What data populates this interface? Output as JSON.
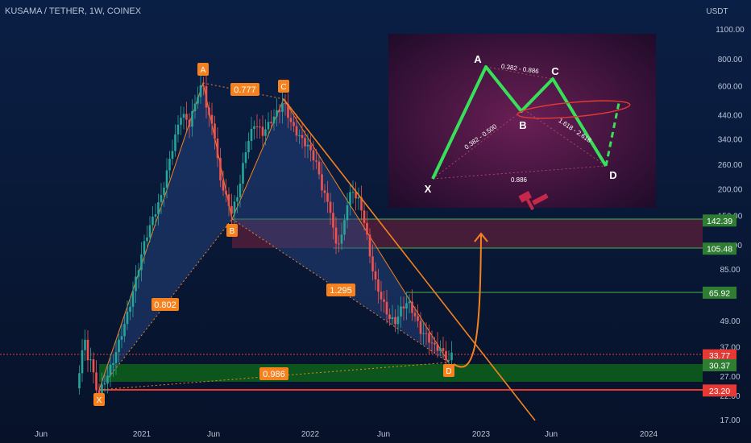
{
  "header": {
    "title": "KUSAMA / TETHER, 1W, COINEX"
  },
  "axis": {
    "currency": "USDT",
    "y_ticks": [
      "1100.00",
      "800.00",
      "600.00",
      "440.00",
      "340.00",
      "260.00",
      "200.00",
      "150.00",
      "110.00",
      "85.00",
      "49.00",
      "37.00",
      "27.00",
      "22.00",
      "17.00"
    ],
    "x_ticks": [
      "Jun",
      "2021",
      "Jun",
      "2022",
      "Jun",
      "2023",
      "Jun",
      "2024"
    ]
  },
  "price_tags": [
    {
      "value": "142.39",
      "color": "#2e7d32"
    },
    {
      "value": "105.48",
      "color": "#2e7d32"
    },
    {
      "value": "65.92",
      "color": "#2e7d32"
    },
    {
      "value": "33.77",
      "color": "#e53935"
    },
    {
      "value": "30.37",
      "color": "#2e7d32"
    },
    {
      "value": "23.20",
      "color": "#e53935"
    }
  ],
  "pattern_points": [
    "X",
    "A",
    "B",
    "C",
    "D"
  ],
  "ratio_labels": [
    "0.777",
    "0.802",
    "1.295",
    "0.986"
  ],
  "inset": {
    "points": [
      "X",
      "A",
      "B",
      "C",
      "D"
    ],
    "ratios": [
      "0.382 - 0.886",
      "0.382 - 0.500",
      "1.618 - 2.618",
      "0.886"
    ]
  },
  "colors": {
    "orange": "#f5821f",
    "up": "#26a69a",
    "down": "#ef5350",
    "green_zone": "#0f5a1e",
    "red_zone": "#5a1f2e",
    "pattern_green": "#38e05a"
  },
  "chart_data": {
    "type": "candlestick",
    "title": "KUSAMA / TETHER, 1W, COINEX",
    "ylabel": "USDT",
    "x_ticks": [
      "Jun",
      "2021",
      "Jun",
      "2022",
      "Jun",
      "2023",
      "Jun",
      "2024"
    ],
    "y_scale": "log",
    "ylim": [
      16,
      1250
    ],
    "pattern": "bat harmonic",
    "points": {
      "X": 23.2,
      "A": 623,
      "B": 148,
      "C": 505,
      "D": 30.4
    },
    "levels": [
      142.39,
      105.48,
      65.92,
      33.77,
      30.37,
      23.2
    ]
  }
}
